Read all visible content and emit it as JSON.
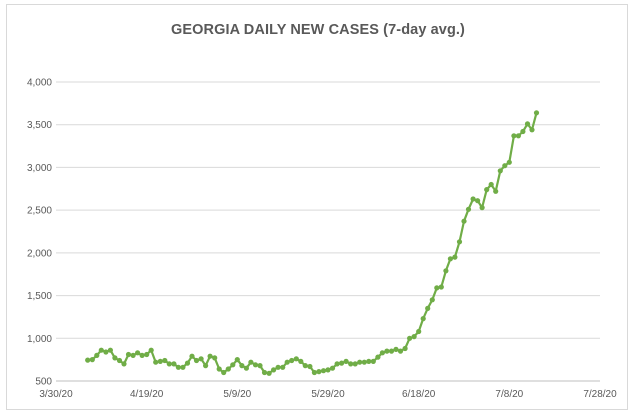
{
  "chart_data": {
    "type": "line",
    "title": "GEORGIA DAILY NEW CASES (7-day avg.)",
    "xlabel": "",
    "ylabel": "",
    "x_ticks": [
      "3/30/20",
      "4/19/20",
      "5/9/20",
      "5/29/20",
      "6/18/20",
      "7/8/20",
      "7/28/20"
    ],
    "y_ticks": [
      "500",
      "1,000",
      "1,500",
      "2,000",
      "2,500",
      "3,000",
      "3,500",
      "4,000"
    ],
    "xlim": [
      "2020-03-30",
      "2020-07-28"
    ],
    "ylim": [
      500,
      4000
    ],
    "grid": "horizontal",
    "line_color": "#70ad47",
    "x_start": "2020-04-06",
    "y": [
      745,
      750,
      800,
      860,
      840,
      860,
      770,
      740,
      700,
      810,
      800,
      830,
      800,
      810,
      860,
      720,
      730,
      740,
      700,
      700,
      660,
      660,
      710,
      790,
      740,
      760,
      680,
      790,
      770,
      640,
      600,
      640,
      690,
      750,
      680,
      650,
      720,
      690,
      680,
      600,
      590,
      630,
      660,
      660,
      720,
      740,
      760,
      730,
      680,
      670,
      600,
      610,
      620,
      630,
      650,
      700,
      710,
      730,
      700,
      700,
      720,
      720,
      730,
      730,
      780,
      830,
      850,
      850,
      870,
      850,
      880,
      1000,
      1020,
      1080,
      1230,
      1350,
      1450,
      1590,
      1600,
      1790,
      1930,
      1950,
      2130,
      2370,
      2510,
      2630,
      2610,
      2530,
      2740,
      2800,
      2720,
      2960,
      3020,
      3060,
      3370,
      3370,
      3420,
      3510,
      3440,
      3640
    ]
  }
}
